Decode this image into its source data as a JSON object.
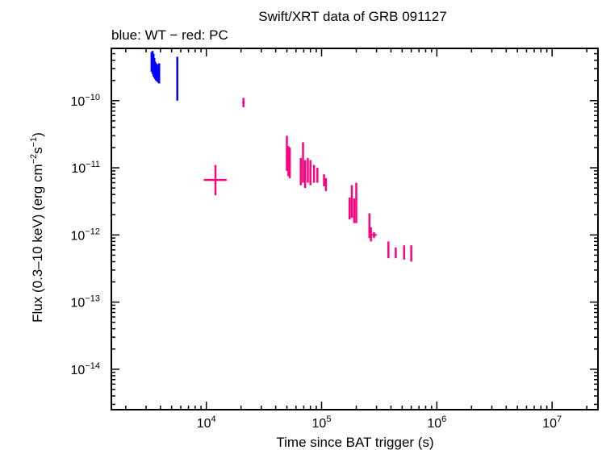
{
  "chart_data": {
    "type": "scatter",
    "title": "Swift/XRT data of GRB 091127",
    "subtitle": "blue: WT − red: PC",
    "xlabel": "Time since BAT trigger (s)",
    "ylabel_parts": {
      "pre": "Flux (0.3–10 keV) (erg cm",
      "sup1": "−2",
      "mid": "s",
      "sup2": "−1",
      "post": ")"
    },
    "x_scale": "log",
    "y_scale": "log",
    "xlim": [
      1500,
      25000000
    ],
    "ylim": [
      2.5e-15,
      6e-10
    ],
    "x_ticks": [
      {
        "value": 10000,
        "base": "10",
        "exp": "4"
      },
      {
        "value": 100000,
        "base": "10",
        "exp": "5"
      },
      {
        "value": 1000000,
        "base": "10",
        "exp": "6"
      },
      {
        "value": 10000000,
        "base": "10",
        "exp": "7"
      }
    ],
    "y_ticks": [
      {
        "value": 1e-10,
        "base": "10",
        "exp": "−10"
      },
      {
        "value": 1e-11,
        "base": "10",
        "exp": "−11"
      },
      {
        "value": 1e-12,
        "base": "10",
        "exp": "−12"
      },
      {
        "value": 1e-13,
        "base": "10",
        "exp": "−13"
      },
      {
        "value": 1e-14,
        "base": "10",
        "exp": "−14"
      }
    ],
    "grid": false,
    "series": [
      {
        "name": "WT",
        "color": "#0000ff",
        "points": [
          {
            "x": 3350,
            "xerr": [
              3300,
              3400
            ],
            "y": 3.6e-10,
            "yerr": [
              2.7e-10,
              5.3e-10
            ]
          },
          {
            "x": 3420,
            "xerr": [
              3390,
              3450
            ],
            "y": 3.3e-10,
            "yerr": [
              2.5e-10,
              5.5e-10
            ]
          },
          {
            "x": 3480,
            "xerr": [
              3450,
              3510
            ],
            "y": 3.1e-10,
            "yerr": [
              2.3e-10,
              5e-10
            ]
          },
          {
            "x": 3540,
            "xerr": [
              3510,
              3570
            ],
            "y": 3e-10,
            "yerr": [
              2.2e-10,
              4.3e-10
            ]
          },
          {
            "x": 3600,
            "xerr": [
              3570,
              3630
            ],
            "y": 2.9e-10,
            "yerr": [
              2.1e-10,
              3.8e-10
            ]
          },
          {
            "x": 3660,
            "xerr": [
              3630,
              3690
            ],
            "y": 2.7e-10,
            "yerr": [
              2e-10,
              3.6e-10
            ]
          },
          {
            "x": 3720,
            "xerr": [
              3690,
              3750
            ],
            "y": 2.6e-10,
            "yerr": [
              1.95e-10,
              3.5e-10
            ]
          },
          {
            "x": 3780,
            "xerr": [
              3750,
              3810
            ],
            "y": 2.5e-10,
            "yerr": [
              1.9e-10,
              3.4e-10
            ]
          },
          {
            "x": 3840,
            "xerr": [
              3810,
              3870
            ],
            "y": 2.5e-10,
            "yerr": [
              1.85e-10,
              3.3e-10
            ]
          },
          {
            "x": 3900,
            "xerr": [
              3870,
              3930
            ],
            "y": 2.4e-10,
            "yerr": [
              1.8e-10,
              3.6e-10
            ]
          },
          {
            "x": 5600,
            "xerr": [
              5570,
              5640
            ],
            "y": 2.2e-10,
            "yerr": [
              1e-10,
              4.5e-10
            ]
          }
        ]
      },
      {
        "name": "PC",
        "color": "#ff007f",
        "points": [
          {
            "x": 12000,
            "xerr": [
              9500,
              15000
            ],
            "y": 6.6e-12,
            "yerr": [
              3.9e-12,
              1.1e-11
            ]
          },
          {
            "x": 21000,
            "xerr": [
              20500,
              21500
            ],
            "y": 9.3e-11,
            "yerr": [
              8e-11,
              1.1e-10
            ]
          },
          {
            "x": 50000,
            "xerr": [
              49000,
              51000
            ],
            "y": 1.5e-11,
            "yerr": [
              9e-12,
              3e-11
            ]
          },
          {
            "x": 51500,
            "xerr": [
              51000,
              52000
            ],
            "y": 1.3e-11,
            "yerr": [
              7.5e-12,
              2.1e-11
            ]
          },
          {
            "x": 53000,
            "xerr": [
              52500,
              53500
            ],
            "y": 1.2e-11,
            "yerr": [
              7e-12,
              2e-11
            ]
          },
          {
            "x": 66000,
            "xerr": [
              65000,
              67000
            ],
            "y": 8.5e-12,
            "yerr": [
              5.5e-12,
              1.4e-11
            ]
          },
          {
            "x": 69000,
            "xerr": [
              68000,
              70000
            ],
            "y": 1.2e-11,
            "yerr": [
              6e-12,
              2.4e-11
            ]
          },
          {
            "x": 72000,
            "xerr": [
              71000,
              73000
            ],
            "y": 8e-12,
            "yerr": [
              5e-12,
              1.3e-11
            ]
          },
          {
            "x": 76000,
            "xerr": [
              75000,
              77000
            ],
            "y": 9e-12,
            "yerr": [
              6e-12,
              1.4e-11
            ]
          },
          {
            "x": 80000,
            "xerr": [
              79000,
              81000
            ],
            "y": 8.5e-12,
            "yerr": [
              5.5e-12,
              1.3e-11
            ]
          },
          {
            "x": 86000,
            "xerr": [
              85000,
              87000
            ],
            "y": 8e-12,
            "yerr": [
              6e-12,
              1.1e-11
            ]
          },
          {
            "x": 92000,
            "xerr": [
              91000,
              93000
            ],
            "y": 8e-12,
            "yerr": [
              6e-12,
              1e-11
            ]
          },
          {
            "x": 105000,
            "xerr": [
              104000,
              106000
            ],
            "y": 6.5e-12,
            "yerr": [
              5.3e-12,
              8e-12
            ]
          },
          {
            "x": 109000,
            "xerr": [
              108000,
              110000
            ],
            "y": 6e-12,
            "yerr": [
              4.5e-12,
              7e-12
            ]
          },
          {
            "x": 175000,
            "xerr": [
              172000,
              178000
            ],
            "y": 2.6e-12,
            "yerr": [
              1.7e-12,
              3.6e-12
            ]
          },
          {
            "x": 183000,
            "xerr": [
              180000,
              186000
            ],
            "y": 3.2e-12,
            "yerr": [
              1.8e-12,
              5.5e-12
            ]
          },
          {
            "x": 192000,
            "xerr": [
              189000,
              195000
            ],
            "y": 2.4e-12,
            "yerr": [
              1.5e-12,
              3.5e-12
            ]
          },
          {
            "x": 200000,
            "xerr": [
              197000,
              203000
            ],
            "y": 3.5e-12,
            "yerr": [
              1.5e-12,
              6e-12
            ]
          },
          {
            "x": 260000,
            "xerr": [
              255000,
              265000
            ],
            "y": 1.3e-12,
            "yerr": [
              9e-13,
              2.1e-12
            ]
          },
          {
            "x": 268000,
            "xerr": [
              263000,
              273000
            ],
            "y": 1e-12,
            "yerr": [
              8e-13,
              1.3e-12
            ]
          },
          {
            "x": 285000,
            "xerr": [
              275000,
              300000
            ],
            "y": 1e-12,
            "yerr": [
              9e-13,
              1.1e-12
            ]
          },
          {
            "x": 380000,
            "xerr": [
              375000,
              385000
            ],
            "y": 6e-13,
            "yerr": [
              4.5e-13,
              8e-13
            ]
          },
          {
            "x": 440000,
            "xerr": [
              435000,
              445000
            ],
            "y": 5.5e-13,
            "yerr": [
              4.5e-13,
              6.5e-13
            ]
          },
          {
            "x": 520000,
            "xerr": [
              515000,
              525000
            ],
            "y": 5.5e-13,
            "yerr": [
              4.3e-13,
              7e-13
            ]
          },
          {
            "x": 600000,
            "xerr": [
              595000,
              605000
            ],
            "y": 5.2e-13,
            "yerr": [
              4e-13,
              7e-13
            ]
          }
        ]
      }
    ]
  }
}
